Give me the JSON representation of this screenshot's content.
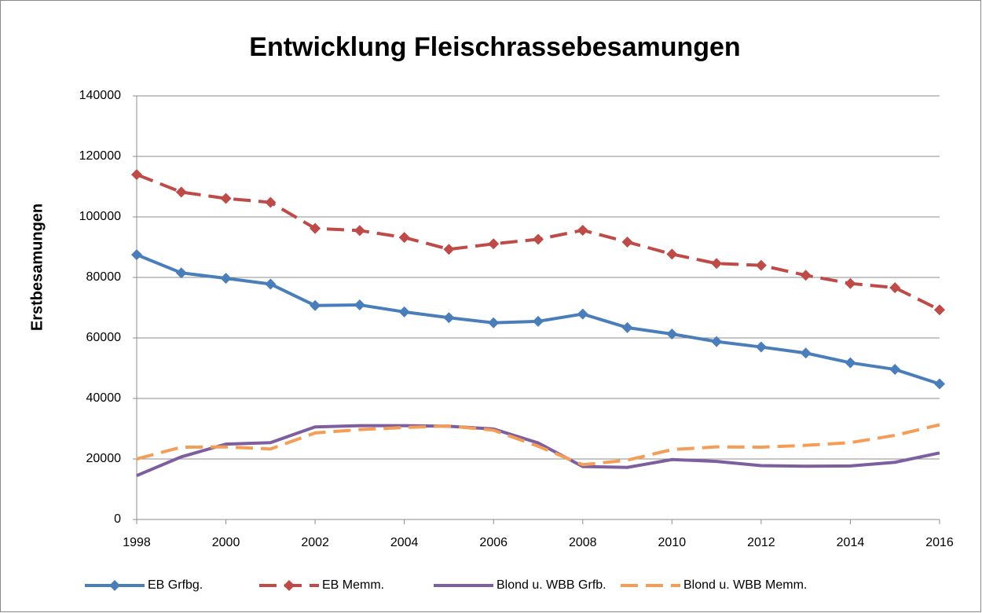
{
  "chart_data": {
    "type": "line",
    "title": "Entwicklung Fleischrassebesamungen",
    "y_label": "Erstbesamungen",
    "x": [
      1998,
      1999,
      2000,
      2001,
      2002,
      2003,
      2004,
      2005,
      2006,
      2007,
      2008,
      2009,
      2010,
      2011,
      2012,
      2013,
      2014,
      2015,
      2016
    ],
    "xlim": [
      1998,
      2016
    ],
    "xticks": [
      1998,
      2000,
      2002,
      2004,
      2006,
      2008,
      2010,
      2012,
      2014,
      2016
    ],
    "ylim": [
      0,
      140000
    ],
    "yticks": [
      0,
      20000,
      40000,
      60000,
      80000,
      100000,
      120000,
      140000
    ],
    "grid": true,
    "legend": "bottom",
    "series": [
      {
        "name": "EB Grfbg.",
        "color": "#4a7ebb",
        "line_style": "solid",
        "marker": "diamond",
        "values": [
          87500,
          81500,
          79700,
          77800,
          70700,
          70900,
          68600,
          66700,
          65000,
          65500,
          67900,
          63400,
          61300,
          58800,
          57000,
          55000,
          51800,
          49600,
          44800
        ]
      },
      {
        "name": "EB Memm.",
        "color": "#be4b48",
        "line_style": "dashed",
        "marker": "diamond",
        "values": [
          114000,
          108200,
          106100,
          104800,
          96200,
          95500,
          93200,
          89300,
          91100,
          92600,
          95600,
          91700,
          87700,
          84600,
          84000,
          80700,
          78000,
          76600,
          69300
        ]
      },
      {
        "name": "Blond u. WBB Grfb.",
        "color": "#7d5fa0",
        "line_style": "solid",
        "marker": "none",
        "values": [
          14500,
          20700,
          24900,
          25400,
          30600,
          31000,
          31000,
          30800,
          29900,
          25300,
          17500,
          17200,
          19800,
          19200,
          17800,
          17600,
          17700,
          18900,
          22000
        ]
      },
      {
        "name": "Blond u. WBB Memm.",
        "color": "#f59d56",
        "line_style": "dashed",
        "marker": "none",
        "values": [
          20000,
          23900,
          24000,
          23300,
          28600,
          29700,
          30400,
          30900,
          29500,
          24200,
          18100,
          19600,
          23100,
          24000,
          23900,
          24500,
          25400,
          27800,
          31300
        ]
      }
    ]
  }
}
